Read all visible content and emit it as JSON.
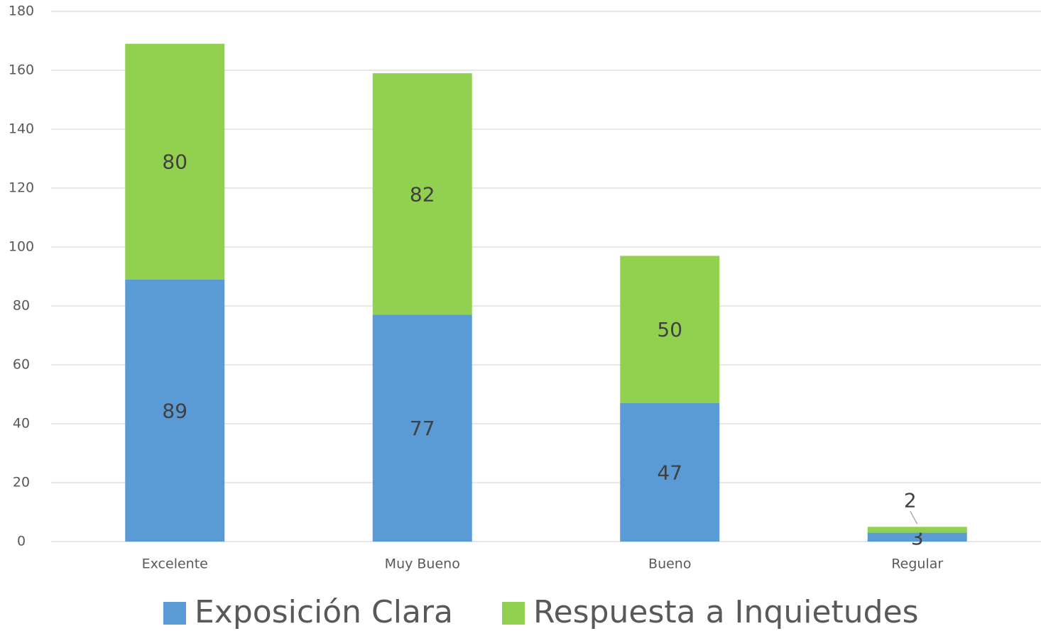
{
  "chart_data": {
    "type": "bar",
    "stacked": true,
    "categories": [
      "Excelente",
      "Muy Bueno",
      "Bueno",
      "Regular"
    ],
    "series": [
      {
        "name": "Exposición Clara",
        "color": "#5b9bd5",
        "values": [
          89,
          77,
          47,
          3
        ]
      },
      {
        "name": "Respuesta a Inquietudes",
        "color": "#92d050",
        "values": [
          80,
          82,
          50,
          2
        ]
      }
    ],
    "ylim": [
      0,
      180
    ],
    "yticks": [
      0,
      20,
      40,
      60,
      80,
      100,
      120,
      140,
      160,
      180
    ],
    "grid": true,
    "legend": "bottom"
  }
}
